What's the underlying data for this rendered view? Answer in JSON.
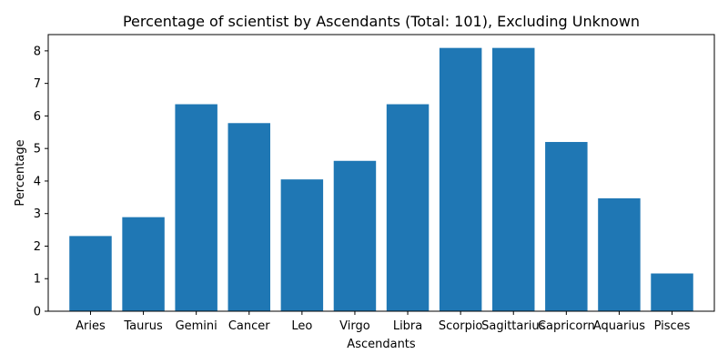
{
  "chart_data": {
    "type": "bar",
    "title": "Percentage of scientist by Ascendants (Total: 101), Excluding Unknown",
    "xlabel": "Ascendants",
    "ylabel": "Percentage",
    "categories": [
      "Aries",
      "Taurus",
      "Gemini",
      "Cancer",
      "Leo",
      "Virgo",
      "Libra",
      "Scorpio",
      "Sagittarius",
      "Capricorn",
      "Aquarius",
      "Pisces"
    ],
    "values": [
      2.31,
      2.89,
      6.36,
      5.78,
      4.05,
      4.62,
      6.36,
      8.09,
      8.09,
      5.2,
      3.47,
      1.16
    ],
    "ylim": [
      0,
      8.5
    ],
    "yticks": [
      0,
      1,
      2,
      3,
      4,
      5,
      6,
      7,
      8
    ],
    "bar_color": "#1f77b4",
    "grid": false,
    "legend": "none"
  }
}
